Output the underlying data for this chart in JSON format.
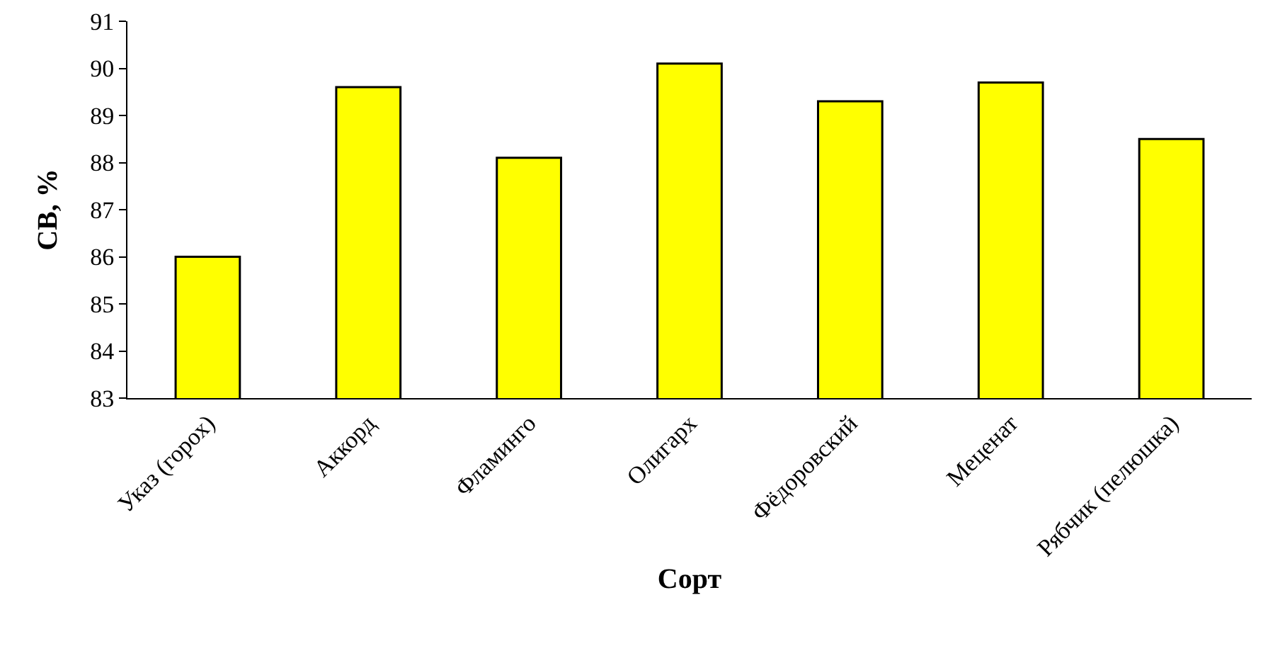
{
  "chart_data": {
    "type": "bar",
    "xlabel": "Сорт",
    "ylabel": "СВ, %",
    "categories": [
      "Указ (горох)",
      "Аккорд",
      "Фламинго",
      "Олигарх",
      "Фёдоровский",
      "Меценат",
      "Рябчик (пелюшка)"
    ],
    "values": [
      86.0,
      89.6,
      88.1,
      90.1,
      89.3,
      89.7,
      88.5
    ],
    "color": "#ffff00",
    "ylim": [
      83,
      91
    ],
    "yticks": [
      83,
      84,
      85,
      86,
      87,
      88,
      89,
      90,
      91
    ],
    "grid": false
  }
}
